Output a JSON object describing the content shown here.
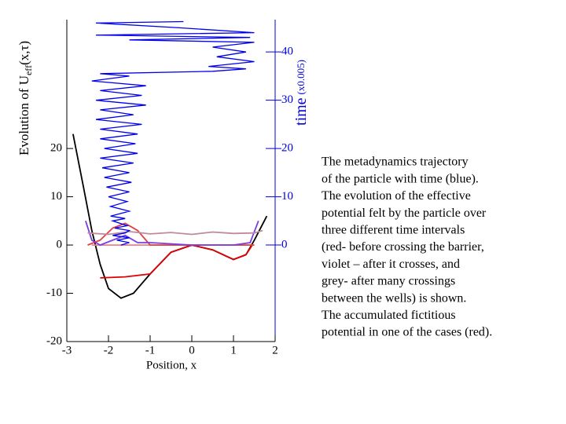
{
  "chart_data": {
    "type": "line",
    "x_label": "Position, x",
    "y_label": {
      "main": "Evolution of  U",
      "sub": "eff",
      "tail": "(x,τ)"
    },
    "y2_label": {
      "main": "time",
      "tail": "(x0.005)"
    },
    "xlim": [
      -3,
      2
    ],
    "xticks": [
      -3,
      -2,
      -1,
      0,
      1,
      2
    ],
    "ylim": [
      -20,
      46.7
    ],
    "yticks": [
      -20,
      -10,
      0,
      10,
      20
    ],
    "y2lim": [
      -20,
      46.7
    ],
    "y2ticks": [
      0,
      10,
      20,
      30,
      40
    ],
    "y2color": "#0000dd",
    "series": [
      {
        "color": "#000000",
        "x": [
          -2.85,
          -2.6,
          -2.4,
          -2.2,
          -2.0,
          -1.7,
          -1.4,
          -1.0,
          -0.5,
          0,
          0.5,
          1.0,
          1.3,
          1.5,
          1.8
        ],
        "values": [
          23,
          12,
          3,
          -4,
          -9,
          -11,
          -10,
          -6,
          -1.5,
          0,
          -1,
          -3,
          -2,
          1,
          6
        ]
      },
      {
        "color": "#e00000",
        "x": [
          -2.2,
          -1.6,
          -1.0,
          -0.5,
          0,
          0.5,
          1.0,
          1.3,
          1.45
        ],
        "values": [
          -6.8,
          -6.6,
          -6,
          -1.5,
          0,
          -1,
          -3,
          -2,
          0
        ]
      },
      {
        "color": "#f08080",
        "x": [
          -2.4,
          1.5
        ],
        "values": [
          0,
          0
        ]
      },
      {
        "color": "#e04040",
        "x": [
          -2.5,
          -2.2,
          -1.9,
          -1.6,
          -1.3,
          -1.0,
          0,
          1.5
        ],
        "values": [
          0,
          1,
          3.5,
          4.5,
          3,
          0,
          0,
          0
        ]
      },
      {
        "color": "#7b3fe0",
        "x": [
          -2.55,
          -2.4,
          -2.2,
          -1.9,
          -1.6,
          -1.3,
          -1.0,
          0,
          1.0,
          1.4,
          1.6
        ],
        "values": [
          5,
          1,
          0,
          1,
          2,
          0.5,
          0.5,
          0,
          0,
          0.5,
          5
        ]
      },
      {
        "color": "#c08a9a",
        "x": [
          -2.5,
          -2.0,
          -1.5,
          -1.0,
          -0.5,
          0,
          0.5,
          1.0,
          1.5,
          1.7
        ],
        "values": [
          2.5,
          2.2,
          2.8,
          2.3,
          2.6,
          2.2,
          2.7,
          2.4,
          2.5,
          3
        ]
      },
      {
        "color": "#0000ee",
        "axis": "y2",
        "x": [
          -1.7,
          -1.5,
          -1.8,
          -1.5,
          -1.9,
          -1.6,
          -1.5,
          -1.85,
          -1.55,
          -1.9,
          -1.6,
          -1.95,
          -1.5,
          -1.95,
          -1.55,
          -2.0,
          -1.5,
          -2.05,
          -1.45,
          -2.1,
          -1.5,
          -2.15,
          -1.4,
          -2.2,
          -1.3,
          -2.1,
          -1.35,
          -2.2,
          -1.3,
          -2.2,
          -1.2,
          -2.3,
          -1.4,
          -2.2,
          -1.1,
          -2.3,
          -1.2,
          -2.2,
          -1.1,
          -2.4,
          -1.5,
          -2.2,
          0.5,
          1.3,
          0.4,
          1.5,
          0.6,
          1.3,
          0.5,
          1.5,
          -1.5,
          1.4,
          -2.3,
          1.5,
          -0.3,
          -2.3,
          -0.2
        ],
        "values": [
          0,
          0.5,
          1,
          1.5,
          2,
          2.5,
          3,
          3.5,
          4,
          5,
          5.5,
          6,
          7,
          8,
          9,
          10,
          11,
          12,
          13,
          14,
          15,
          16,
          17,
          18,
          19,
          20,
          21,
          22,
          23,
          24,
          25,
          26,
          27,
          28,
          29,
          30,
          31,
          32,
          33,
          34,
          35,
          35.5,
          36,
          36.5,
          37,
          38,
          39,
          40,
          41,
          42,
          42.5,
          43,
          43.5,
          44,
          45,
          46,
          46.3
        ]
      }
    ]
  },
  "caption": [
    "The metadynamics trajectory",
    "of the particle with time (blue).",
    "The evolution of the effective",
    "potential felt by the particle over",
    "three different time intervals",
    "(red- before crossing the barrier,",
    "violet – after it crosses, and",
    "grey- after many crossings",
    "between the wells) is shown.",
    "The accumulated fictitious",
    "potential in one of the cases (red)."
  ]
}
